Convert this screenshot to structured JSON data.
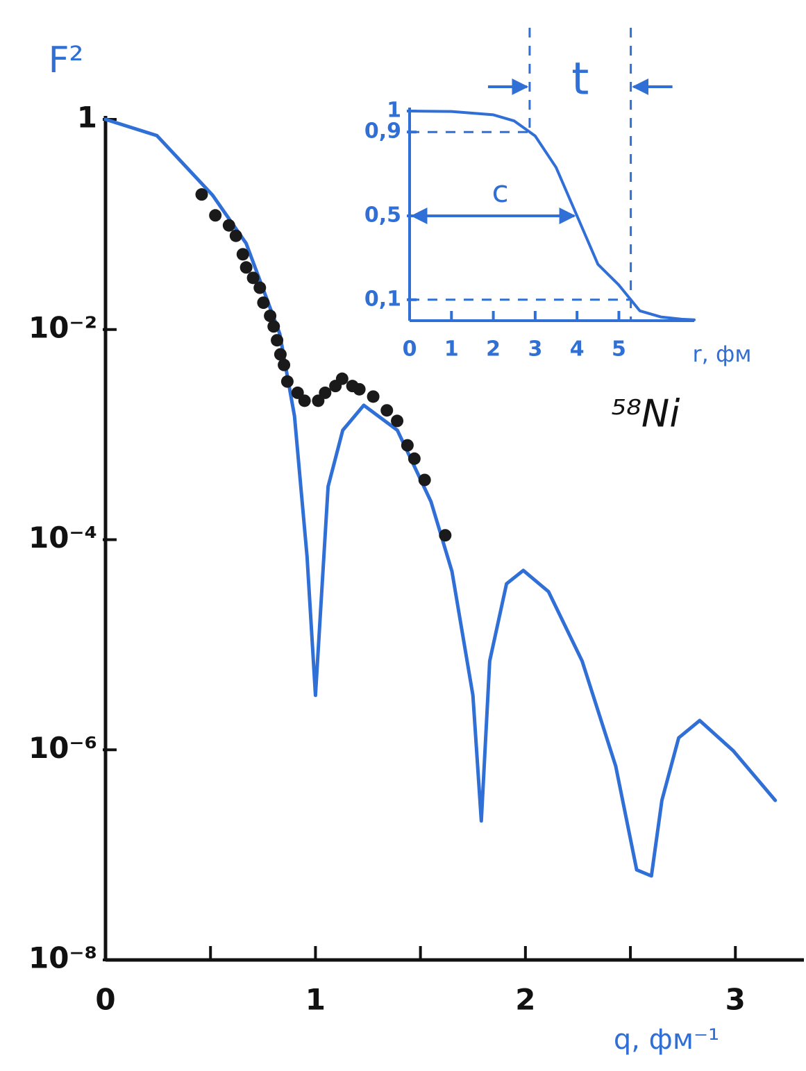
{
  "chart_data": [
    {
      "type": "line",
      "log_y": true,
      "y_label": "F²",
      "x_label": "q, фм⁻¹",
      "xlim": [
        0,
        3.3
      ],
      "xticks": [
        0,
        1,
        2,
        3
      ],
      "x_minor_ticks": [
        0.5,
        1.5,
        2.5
      ],
      "ylim": [
        1e-08,
        1
      ],
      "yticks": [
        1,
        {
          "value": 0.01,
          "label": "10⁻²"
        },
        {
          "value": 0.0001,
          "label": "10⁻⁴"
        },
        {
          "value": 1e-06,
          "label": "10⁻⁶"
        },
        {
          "value": 1e-08,
          "label": "10⁻⁸"
        }
      ],
      "axis_color": "#111111",
      "label_color": "#2f6fd6",
      "series": [
        {
          "kind": "line",
          "color": "#2f6fd6",
          "x": [
            0,
            0.245,
            0.51,
            0.67,
            0.83,
            0.9,
            0.96,
            1.0,
            1.06,
            1.13,
            1.23,
            1.39,
            1.55,
            1.65,
            1.75,
            1.79,
            1.83,
            1.91,
            1.99,
            2.11,
            2.27,
            2.43,
            2.53,
            2.6,
            2.65,
            2.73,
            2.83,
            2.99,
            3.19
          ],
          "values": [
            1,
            0.7,
            0.19,
            0.066,
            0.0091,
            0.0015,
            6.9e-05,
            3.3e-06,
            0.00032,
            0.0011,
            0.0019,
            0.0011,
            0.00023,
            5e-05,
            3.3e-06,
            2.1e-07,
            7e-06,
            3.8e-05,
            5.1e-05,
            3.2e-05,
            7e-06,
            7e-07,
            7.2e-08,
            6.3e-08,
            3.3e-07,
            1.3e-06,
            1.9e-06,
            9.8e-07,
            3.3e-07
          ]
        },
        {
          "kind": "scatter",
          "color": "#1a1a1a",
          "x": [
            0.458,
            0.523,
            0.588,
            0.621,
            0.654,
            0.67,
            0.703,
            0.735,
            0.752,
            0.784,
            0.801,
            0.817,
            0.833,
            0.85,
            0.866,
            0.915,
            0.948,
            1.013,
            1.046,
            1.095,
            1.127,
            1.176,
            1.209,
            1.275,
            1.34,
            1.389,
            1.438,
            1.471,
            1.52,
            1.618
          ],
          "values": [
            0.193,
            0.122,
            0.098,
            0.078,
            0.052,
            0.039,
            0.031,
            0.025,
            0.018,
            0.0135,
            0.0107,
            0.0079,
            0.0058,
            0.0046,
            0.0032,
            0.0025,
            0.0021,
            0.0021,
            0.0025,
            0.0029,
            0.0034,
            0.0029,
            0.0027,
            0.0023,
            0.0017,
            0.00135,
            0.00079,
            0.00059,
            0.00037,
            0.00011
          ]
        }
      ]
    },
    {
      "type": "line",
      "log_y": false,
      "title": "⁵⁸Ni",
      "x_label": "r, фм",
      "width_label": "t",
      "radius_label": "c",
      "xlim": [
        0,
        6.8
      ],
      "xticks": [
        0,
        1,
        2,
        3,
        4,
        5
      ],
      "ylim": [
        0,
        1
      ],
      "yticks": [
        {
          "value": 0.1,
          "label": "0,1"
        },
        {
          "value": 0.5,
          "label": "0,5"
        },
        {
          "value": 0.9,
          "label": "0,9"
        },
        1
      ],
      "axis_color": "#2f6fd6",
      "label_color": "#2f6fd6",
      "series": [
        {
          "kind": "line",
          "color": "#2f6fd6",
          "x": [
            0,
            1,
            2,
            2.5,
            3,
            3.5,
            4,
            4.5,
            5,
            5.5,
            6,
            6.5,
            6.8
          ],
          "values": [
            1,
            0.998,
            0.982,
            0.953,
            0.881,
            0.731,
            0.5,
            0.269,
            0.17,
            0.047,
            0.018,
            0.007,
            0.004
          ]
        }
      ]
    }
  ]
}
